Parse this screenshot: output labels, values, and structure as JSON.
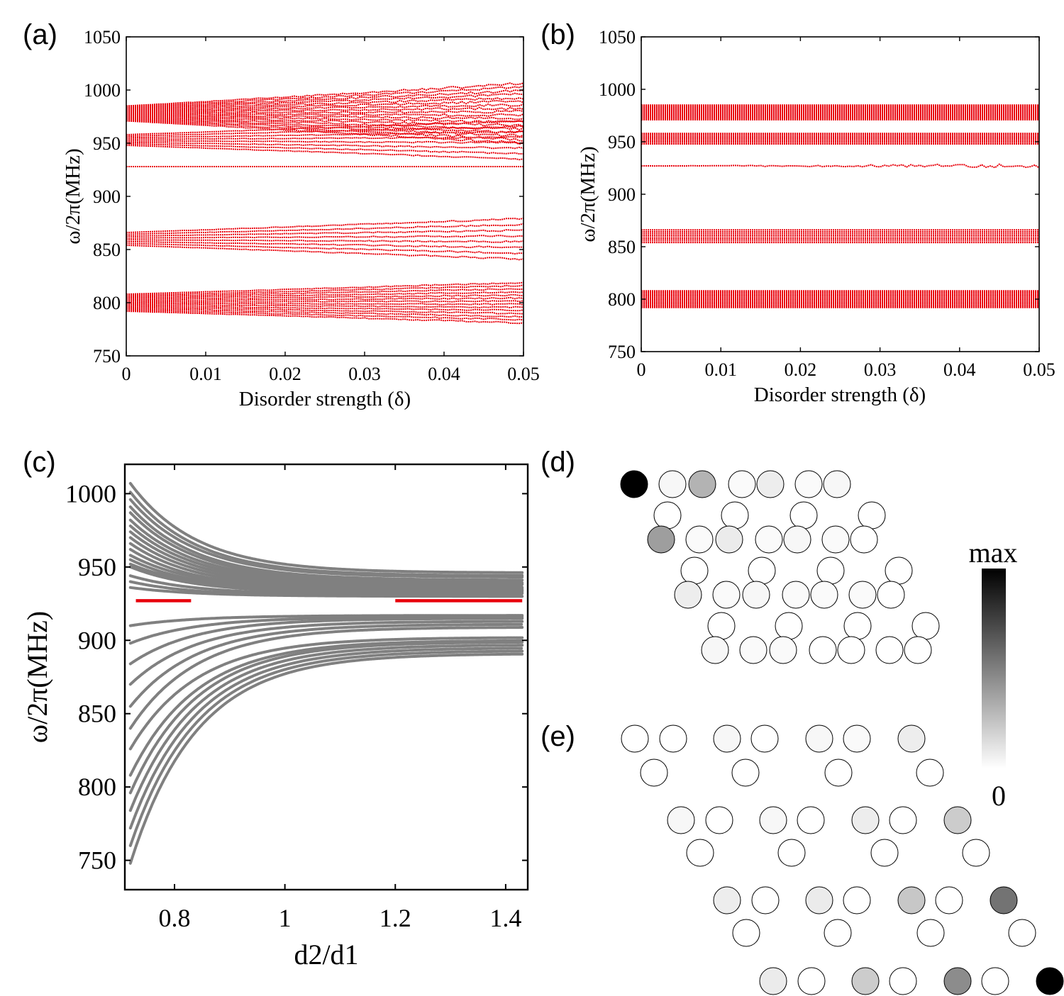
{
  "chart_data": [
    {
      "panel": "(a)",
      "type": "scatter",
      "xlabel": "Disorder strength (δ)",
      "ylabel": "ω/2π(MHz)",
      "xlim": [
        0,
        0.05
      ],
      "ylim": [
        750,
        1050
      ],
      "xticks": [
        "0",
        "0.01",
        "0.02",
        "0.03",
        "0.04",
        "0.05"
      ],
      "yticks": [
        "750",
        "800",
        "850",
        "900",
        "950",
        "1000",
        "1050"
      ],
      "color": "#e8000b",
      "bands": [
        {
          "name": "upper band",
          "center": 978,
          "halfwidth_at_0": 7,
          "halfwidth_at_max": 28,
          "levels": 18
        },
        {
          "name": "second band",
          "center": 953,
          "halfwidth_at_0": 5,
          "halfwidth_at_max": 18,
          "levels": 8
        },
        {
          "name": "edge state",
          "center": 928,
          "halfwidth_at_0": 0,
          "halfwidth_at_max": 0,
          "levels": 1
        },
        {
          "name": "middle band",
          "center": 860,
          "halfwidth_at_0": 6,
          "halfwidth_at_max": 19,
          "levels": 8
        },
        {
          "name": "lower band",
          "center": 800,
          "halfwidth_at_0": 8,
          "halfwidth_at_max": 19,
          "levels": 14
        }
      ]
    },
    {
      "panel": "(b)",
      "type": "scatter",
      "xlabel": "Disorder strength (δ)",
      "ylabel": "ω/2π(MHz)",
      "xlim": [
        0,
        0.05
      ],
      "ylim": [
        750,
        1050
      ],
      "xticks": [
        "0",
        "0.01",
        "0.02",
        "0.03",
        "0.04",
        "0.05"
      ],
      "yticks": [
        "750",
        "800",
        "850",
        "900",
        "950",
        "1000",
        "1050"
      ],
      "color": "#e8000b",
      "bands": [
        {
          "name": "upper band",
          "center": 978,
          "halfwidth_at_0": 7,
          "halfwidth_at_max": 7,
          "levels": 18
        },
        {
          "name": "second band",
          "center": 953,
          "halfwidth_at_0": 5,
          "halfwidth_at_max": 5,
          "levels": 8
        },
        {
          "name": "edge state",
          "center": 927,
          "halfwidth_at_0": 0,
          "halfwidth_at_max": 2,
          "levels": 1
        },
        {
          "name": "middle band",
          "center": 860,
          "halfwidth_at_0": 6,
          "halfwidth_at_max": 6,
          "levels": 8
        },
        {
          "name": "lower band",
          "center": 800,
          "halfwidth_at_0": 8,
          "halfwidth_at_max": 8,
          "levels": 14
        }
      ]
    },
    {
      "panel": "(c)",
      "type": "scatter",
      "xlabel": "d2/d1",
      "ylabel": "ω/2π(MHz)",
      "xlim": [
        0.71,
        1.44
      ],
      "ylim": [
        730,
        1020
      ],
      "xticks": [
        "0.8",
        "1",
        "1.2",
        "1.4"
      ],
      "yticks": [
        "750",
        "800",
        "850",
        "900",
        "950",
        "1000"
      ],
      "series": [
        {
          "name": "upper bulk modes",
          "color": "#808080",
          "x_start": 0.72,
          "x_end": 1.43,
          "start_values": [
            1007,
            1001,
            996,
            991,
            987,
            982,
            978,
            974,
            970,
            966,
            962,
            958,
            955,
            952,
            950
          ],
          "end_values": [
            946,
            944,
            943,
            941,
            940,
            939,
            938,
            937,
            936,
            935,
            934,
            934,
            933,
            933,
            932
          ]
        },
        {
          "name": "upper bulk modes (inner)",
          "color": "#808080",
          "x_start": 0.72,
          "x_end": 1.43,
          "start_values": [
            944,
            940,
            936
          ],
          "end_values": [
            931,
            930,
            930
          ]
        },
        {
          "name": "lower bulk modes",
          "color": "#808080",
          "x_start": 0.72,
          "x_end": 1.43,
          "start_values": [
            748,
            760,
            772,
            784,
            796,
            808,
            826,
            840,
            855,
            870,
            884,
            898,
            910
          ],
          "end_values": [
            891,
            893,
            895,
            897,
            899,
            900,
            902,
            909,
            911,
            913,
            915,
            916,
            917
          ]
        },
        {
          "name": "edge state (topological)",
          "color": "#e8000b",
          "segments": [
            {
              "x": [
                0.73,
                0.83
              ],
              "y": 927
            },
            {
              "x": [
                1.2,
                1.43
              ],
              "y": 927
            }
          ]
        }
      ]
    }
  ],
  "labels": {
    "panel_a": "(a)",
    "panel_b": "(b)",
    "panel_c": "(c)",
    "panel_d": "(d)",
    "panel_e": "(e)",
    "xlabel_ab": "Disorder strength (δ)",
    "ylabel_ab": "ω/2π(MHz)",
    "xlabel_c": "d2/d1",
    "ylabel_c": "ω/2π(MHz)"
  },
  "colorbar": {
    "max_label": "max",
    "min_label": "0"
  },
  "lattice_d": {
    "intensities": [
      1.0,
      0.03,
      0.3,
      0.02,
      0.07,
      0.02,
      0.03,
      0.0,
      0.0,
      0.0,
      0.0,
      0.38,
      0.02,
      0.08,
      0.02,
      0.03,
      0.02,
      0.0,
      0.0,
      0.0,
      0.0,
      0.0,
      0.07,
      0.02,
      0.03,
      0.02,
      0.02,
      0.02,
      0.0,
      0.0,
      0.0,
      0.0,
      0.0,
      0.03,
      0.02,
      0.02,
      0.0,
      0.0,
      0.0,
      0.0
    ]
  },
  "lattice_e": {
    "intensities": [
      0.0,
      0.0,
      0.03,
      0.0,
      0.03,
      0.02,
      0.07,
      0.0,
      0.0,
      0.0,
      0.0,
      0.03,
      0.0,
      0.03,
      0.0,
      0.07,
      0.0,
      0.2,
      0.0,
      0.0,
      0.0,
      0.0,
      0.07,
      0.0,
      0.08,
      0.0,
      0.22,
      0.0,
      0.55,
      0.0,
      0.0,
      0.0,
      0.0,
      0.08,
      0.0,
      0.2,
      0.0,
      0.45,
      0.0,
      1.0
    ]
  }
}
